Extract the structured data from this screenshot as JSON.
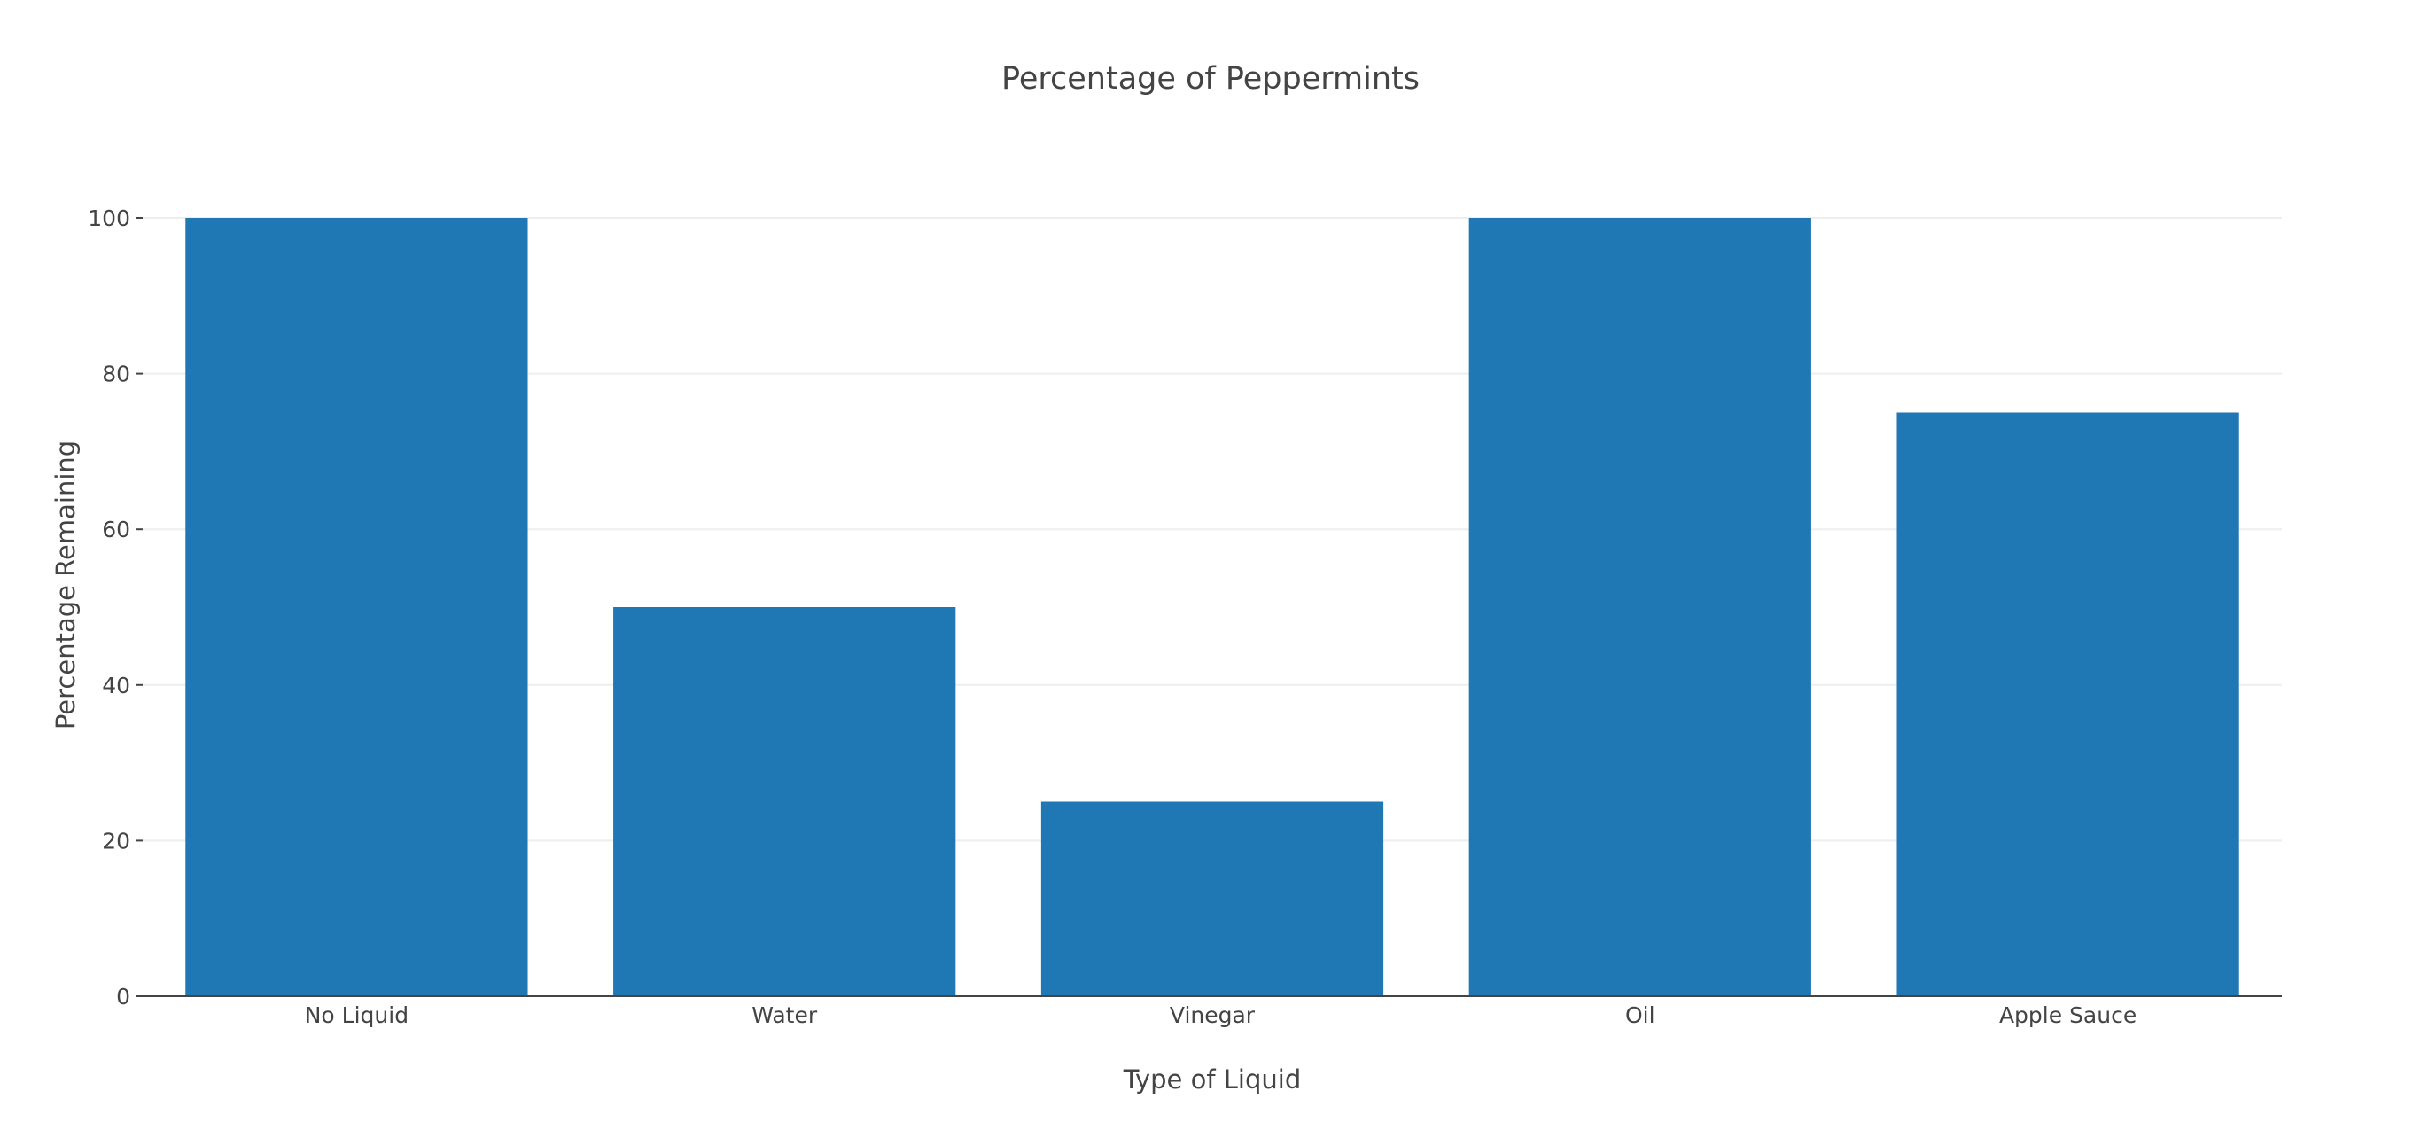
{
  "chart_data": {
    "type": "bar",
    "title": "Percentage of Peppermints",
    "xlabel": "Type of  Liquid",
    "ylabel": "Percentage Remaining",
    "categories": [
      "No Liquid",
      "Water",
      "Vinegar",
      "Oil",
      "Apple Sauce"
    ],
    "values": [
      100,
      50,
      25,
      100,
      75
    ],
    "ylim": [
      0,
      100
    ],
    "yticks": [
      0,
      20,
      40,
      60,
      80,
      100
    ],
    "ytick_labels": [
      "0",
      "20",
      "40",
      "60",
      "80",
      "100"
    ],
    "grid": true,
    "legend": "none",
    "bar_color": "#1f77b4"
  }
}
